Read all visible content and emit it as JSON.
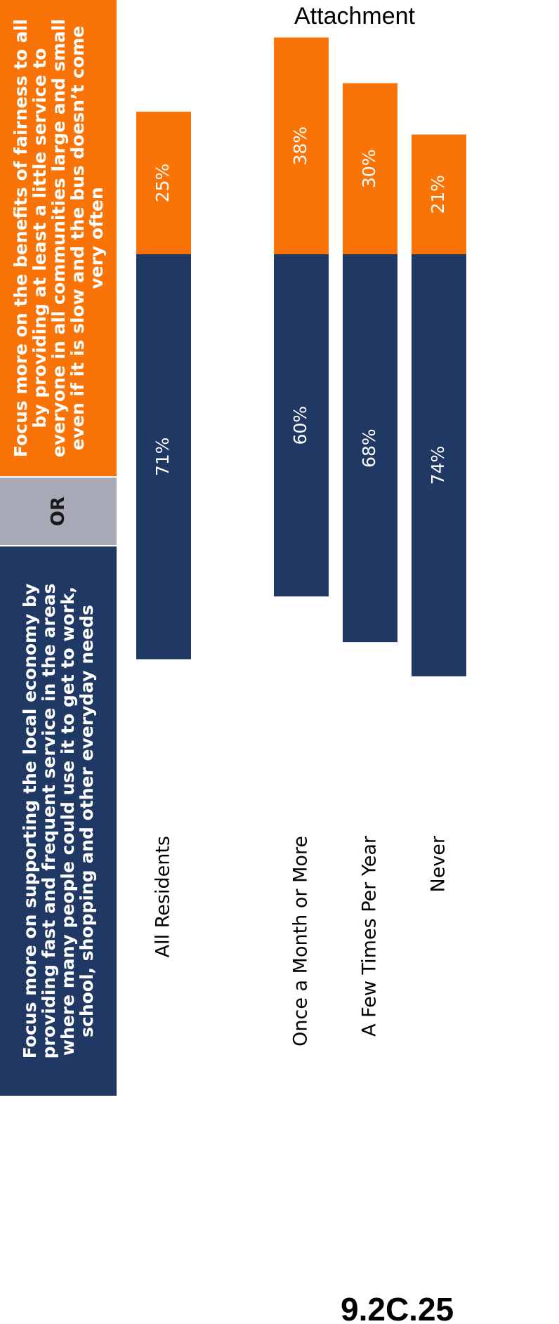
{
  "chart_data": {
    "type": "bar",
    "orientation": "diverging-stacked",
    "title": "Attachment",
    "separator_label": "OR",
    "footnote": "9.2C.25",
    "categories": [
      "All Residents",
      "Once a Month or More",
      "A Few Times Per Year",
      "Never"
    ],
    "series": [
      {
        "name": "Focus more on supporting the local economy by providing fast and frequent service in the areas where many people could use it to get to work, school, shopping and other everyday needs",
        "color": "#1f3864",
        "values": [
          71,
          60,
          68,
          74
        ],
        "value_labels": [
          "71%",
          "60%",
          "68%",
          "74%"
        ]
      },
      {
        "name": "Focus more on the benefits of fairness to all by providing at least a little service to everyone in all communities large and small even if it is slow and the bus doesn’t come very often",
        "color": "#f97306",
        "values": [
          25,
          38,
          30,
          21
        ],
        "value_labels": [
          "25%",
          "38%",
          "30%",
          "21%"
        ]
      }
    ],
    "separator_color": "#a7a9b7"
  }
}
